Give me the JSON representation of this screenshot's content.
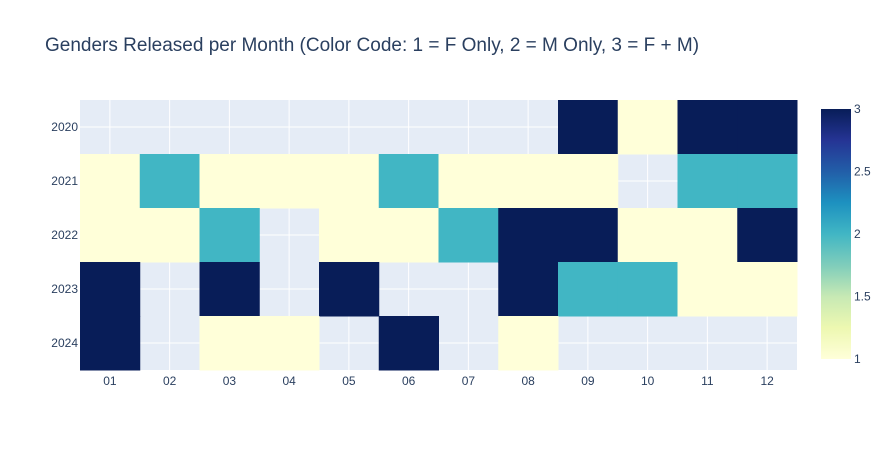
{
  "chart_data": {
    "type": "heatmap",
    "title": "Genders Released per Month (Color Code: 1 = F Only, 2 = M Only, 3 = F + M)",
    "x": [
      "01",
      "02",
      "03",
      "04",
      "05",
      "06",
      "07",
      "08",
      "09",
      "10",
      "11",
      "12"
    ],
    "y": [
      "2020",
      "2021",
      "2022",
      "2023",
      "2024"
    ],
    "z": [
      [
        null,
        null,
        null,
        null,
        null,
        null,
        null,
        null,
        3,
        1,
        3,
        3
      ],
      [
        1,
        2,
        1,
        1,
        1,
        2,
        1,
        1,
        1,
        null,
        2,
        2
      ],
      [
        1,
        1,
        2,
        null,
        1,
        1,
        2,
        3,
        3,
        1,
        1,
        3
      ],
      [
        3,
        null,
        3,
        null,
        3,
        null,
        null,
        3,
        2,
        2,
        1,
        1
      ],
      [
        3,
        null,
        1,
        1,
        null,
        3,
        null,
        1,
        null,
        null,
        null,
        null
      ]
    ],
    "zmin": 1,
    "zmax": 3,
    "colorscale": "YlGnBu",
    "colorbar_ticks": [
      "1",
      "1.5",
      "2",
      "2.5",
      "3"
    ],
    "empty_cell_color": "#e5ecf6",
    "grid": true
  }
}
